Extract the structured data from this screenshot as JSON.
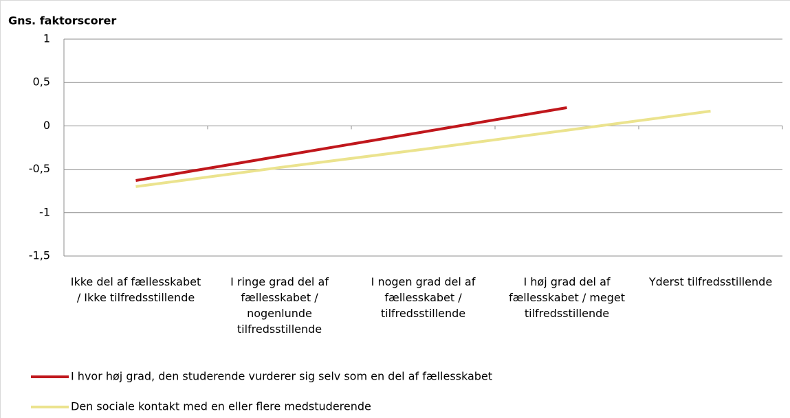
{
  "chart_data": {
    "type": "line",
    "y_axis_label": "Gns. faktorscorer",
    "categories": [
      "Ikke del af fællesskabet / Ikke tilfredsstillende",
      "I ringe grad del af fællesskabet / nogenlunde tilfredsstillende",
      "I nogen grad del af fællesskabet / tilfredsstillende",
      "I høj grad del af fællesskabet / meget tilfredsstillende",
      "Yderst tilfredsstillende"
    ],
    "series": [
      {
        "name": "I hvor høj grad, den studerende vurderer sig selv som en del af fællesskabet",
        "color": "#c0171c",
        "values": [
          -0.63,
          -0.35,
          -0.07,
          0.21,
          null
        ]
      },
      {
        "name": "Den sociale kontakt med en eller flere medstuderende",
        "color": "#ebe38e",
        "values": [
          -0.7,
          -0.48,
          -0.27,
          -0.05,
          0.17
        ]
      }
    ],
    "ylim": [
      -1.5,
      1
    ],
    "yticks": [
      {
        "value": -1.5,
        "label": "-1,5"
      },
      -1,
      {
        "value": -0.5,
        "label": "-0,5"
      },
      0,
      {
        "value": 0.5,
        "label": "0,5"
      },
      1
    ],
    "grid": true,
    "legend": "bottom"
  }
}
